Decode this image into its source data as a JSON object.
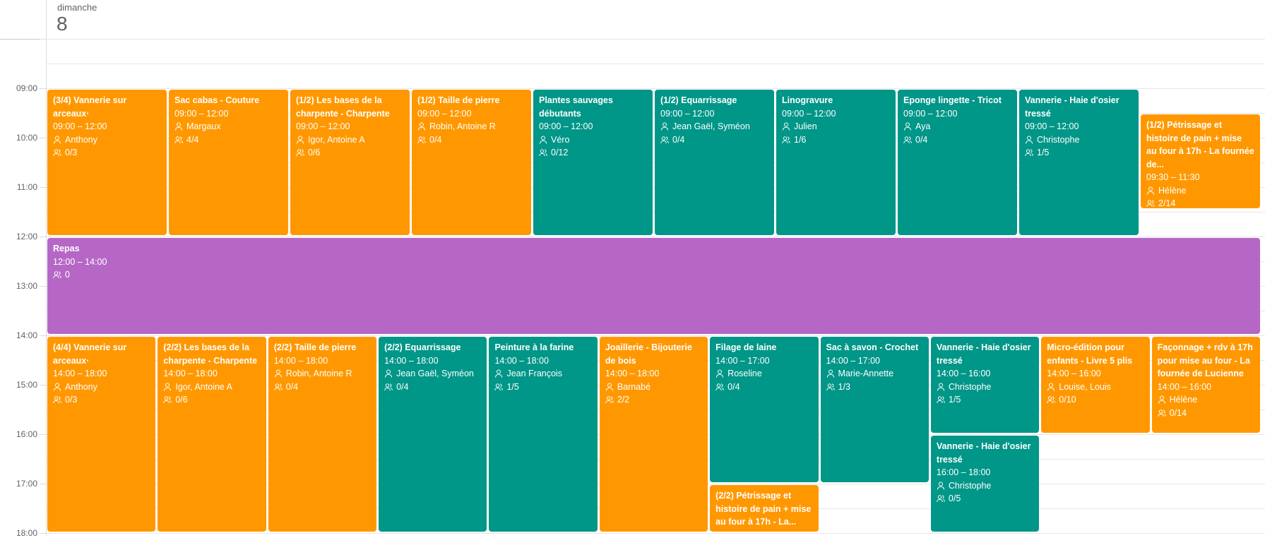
{
  "header": {
    "weekday": "dimanche",
    "day": "8"
  },
  "hours": [
    "09:00",
    "10:00",
    "11:00",
    "12:00",
    "13:00",
    "14:00",
    "15:00",
    "16:00",
    "17:00",
    "18:00"
  ],
  "events": [
    {
      "title": "(3/4) Vannerie sur arceaux·",
      "time": "09:00 – 12:00",
      "person": "Anthony",
      "count": "0/3",
      "color": "#ff9800"
    },
    {
      "title": "Sac cabas - Couture",
      "time": "09:00 – 12:00",
      "person": "Margaux",
      "count": "4/4",
      "color": "#ff9800"
    },
    {
      "title": "(1/2) Les bases de la charpente - Charpente",
      "time": "09:00 – 12:00",
      "person": "Igor, Antoine A",
      "count": "0/6",
      "color": "#ff9800"
    },
    {
      "title": "(1/2) Taille de pierre",
      "time": "09:00 – 12:00",
      "person": "Robin, Antoine R",
      "count": "0/4",
      "color": "#ff9800"
    },
    {
      "title": "Plantes sauvages débutants",
      "time": "09:00 – 12:00",
      "person": "Véro",
      "count": "0/12",
      "color": "#009688"
    },
    {
      "title": "(1/2) Equarrissage",
      "time": "09:00 – 12:00",
      "person": "Jean Gaël, Syméon",
      "count": "0/4",
      "color": "#009688"
    },
    {
      "title": "Linogravure",
      "time": "09:00 – 12:00",
      "person": "Julien",
      "count": "1/6",
      "color": "#009688"
    },
    {
      "title": "Eponge lingette - Tricot",
      "time": "09:00 – 12:00",
      "person": "Aya",
      "count": "0/4",
      "color": "#009688"
    },
    {
      "title": "Vannerie - Haie d'osier tressé",
      "time": "09:00 – 12:00",
      "person": "Christophe",
      "count": "1/5",
      "color": "#009688"
    },
    {
      "title": "(1/2) Pétrissage et histoire de pain + mise au four à 17h - La fournée de...",
      "time": "09:30 – 11:30",
      "person": "Hélène",
      "count": "2/14",
      "color": "#ff9800"
    },
    {
      "title": "Repas",
      "time": "12:00 – 14:00",
      "count": "0",
      "color": "#b667c6"
    },
    {
      "title": "(4/4) Vannerie sur arceaux·",
      "time": "14:00 – 18:00",
      "person": "Anthony",
      "count": "0/3",
      "color": "#ff9800"
    },
    {
      "title": "(2/2) Les bases de la charpente - Charpente",
      "time": "14:00 – 18:00",
      "person": "Igor, Antoine A",
      "count": "0/6",
      "color": "#ff9800"
    },
    {
      "title": "(2/2) Taille de pierre",
      "time": "14:00 – 18:00",
      "person": "Robin, Antoine R",
      "count": "0/4",
      "color": "#ff9800"
    },
    {
      "title": "(2/2) Equarrissage",
      "time": "14:00 – 18:00",
      "person": "Jean Gaël, Syméon",
      "count": "0/4",
      "color": "#009688"
    },
    {
      "title": "Peinture à la farine",
      "time": "14:00 – 18:00",
      "person": "Jean François",
      "count": "1/5",
      "color": "#009688"
    },
    {
      "title": "Joaillerie - Bijouterie de bois",
      "time": "14:00 – 18:00",
      "person": "Barnabé",
      "count": "2/2",
      "color": "#ff9800"
    },
    {
      "title": "Filage de laine",
      "time": "14:00 – 17:00",
      "person": "Roseline",
      "count": "0/4",
      "color": "#009688"
    },
    {
      "title": "(2/2) Pétrissage et histoire de pain + mise au four à 17h - La...",
      "color": "#ff9800"
    },
    {
      "title": "Sac à savon - Crochet",
      "time": "14:00 – 17:00",
      "person": "Marie-Annette",
      "count": "1/3",
      "color": "#009688"
    },
    {
      "title": "Vannerie - Haie d'osier tressé",
      "time": "14:00 – 16:00",
      "person": "Christophe",
      "count": "1/5",
      "color": "#009688"
    },
    {
      "title": "Vannerie - Haie d'osier tressé",
      "time": "16:00 – 18:00",
      "person": "Christophe",
      "count": "0/5",
      "color": "#009688"
    },
    {
      "title": "Micro-édition pour enfants - Livre 5 plis",
      "time": "14:00 – 16:00",
      "person": "Louise, Louis",
      "count": "0/10",
      "color": "#ff9800"
    },
    {
      "title": "Façonnage + rdv à 17h pour mise au four - La fournée de Lucienne",
      "time": "14:00 – 16:00",
      "person": "Hélène",
      "count": "0/14",
      "color": "#ff9800"
    }
  ]
}
